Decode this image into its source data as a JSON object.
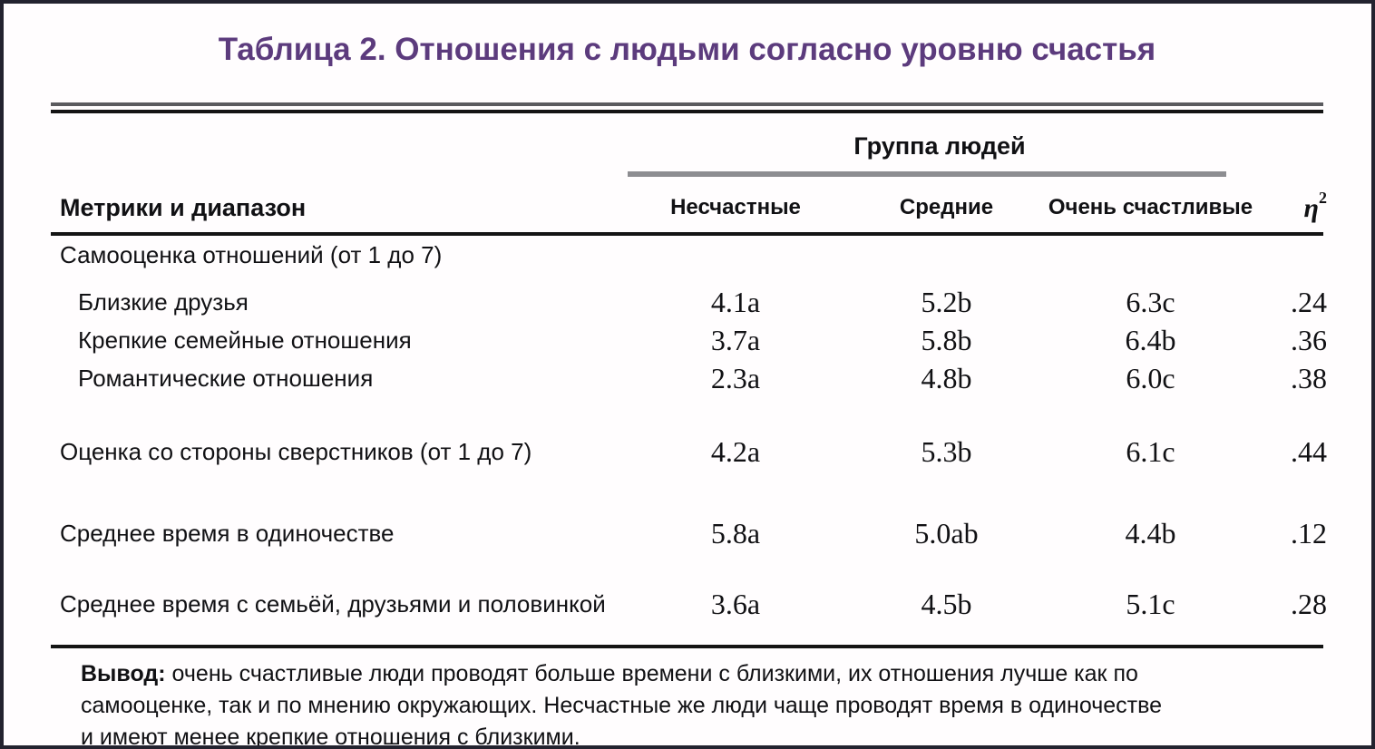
{
  "title": "Таблица 2. Отношения с людьми согласно уровню счастья",
  "table": {
    "group_header": "Группа людей",
    "col_label_header": "Метрики и диапазон",
    "columns": [
      "Несчастные",
      "Средние",
      "Очень счастливые"
    ],
    "eta": {
      "symbol": "η",
      "sup": "2"
    },
    "rows": [
      {
        "label": "Самооценка отношений (от 1 до 7)"
      },
      {
        "label": "Близкие друзья",
        "values": [
          "4.1a",
          "5.2b",
          "6.3c",
          ".24"
        ]
      },
      {
        "label": "Крепкие семейные отношения",
        "values": [
          "3.7a",
          "5.8b",
          "6.4b",
          ".36"
        ]
      },
      {
        "label": "Романтические отношения",
        "values": [
          "2.3a",
          "4.8b",
          "6.0c",
          ".38"
        ]
      },
      {
        "label": "Оценка со стороны сверстников (от 1 до 7)",
        "values": [
          "4.2a",
          "5.3b",
          "6.1c",
          ".44"
        ]
      },
      {
        "label": "Среднее время в одиночестве",
        "values": [
          "5.8a",
          "5.0ab",
          "4.4b",
          ".12"
        ]
      },
      {
        "label": "Среднее время с семьёй, друзьями и половинкой",
        "values": [
          "3.6a",
          "4.5b",
          "5.1c",
          ".28"
        ]
      }
    ]
  },
  "footer": {
    "lead": "Вывод:",
    "lines": [
      "очень счастливые люди проводят больше времени с близкими, их отношения лучше как по",
      "самооценке, так и по мнению окружающих. Несчастные же люди чаще проводят время в одиночестве",
      "и имеют менее крепкие отношения с близкими."
    ]
  },
  "colors": {
    "title_purple": "#5c3b7d",
    "border_dark": "#23232f",
    "gray_underline": "#8d8d91",
    "rule_black": "#141414"
  }
}
